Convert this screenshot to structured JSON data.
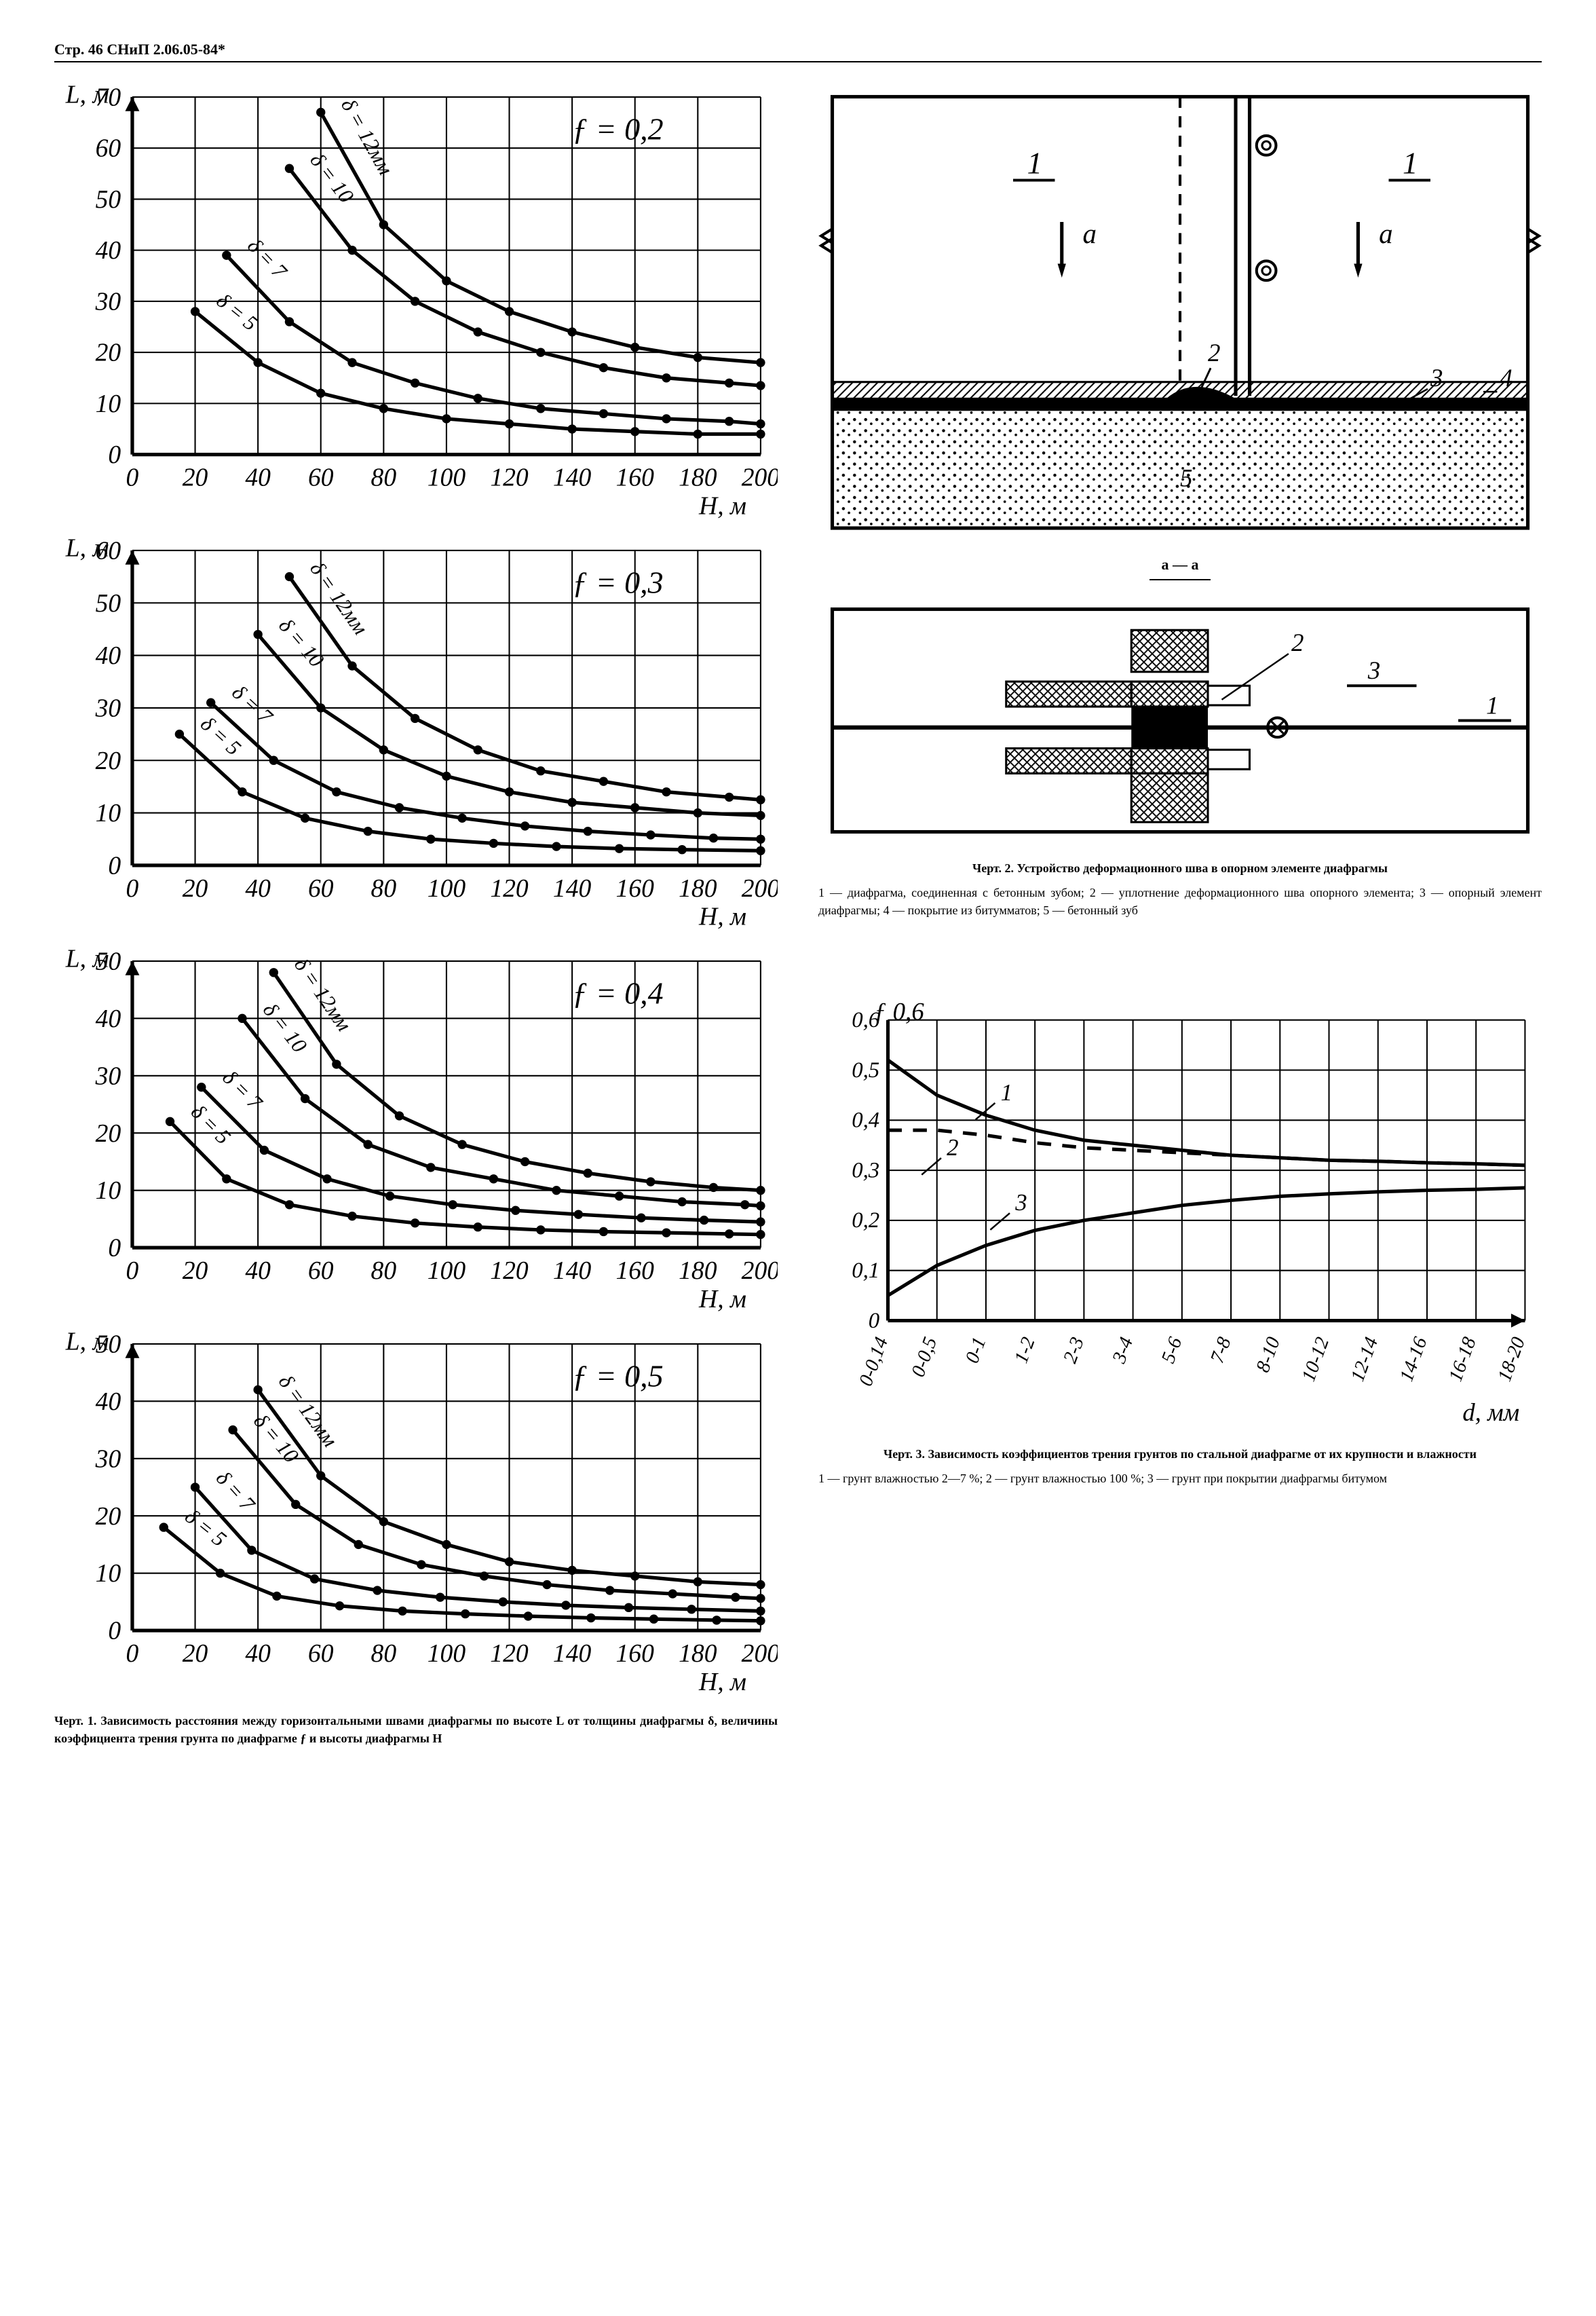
{
  "header": "Стр. 46 СНиП 2.06.05-84*",
  "chart1": {
    "panels": [
      {
        "y_label": "L, м",
        "y_max": 70,
        "y_step": 10,
        "x_label": "H, м",
        "x_max": 200,
        "x_step": 20,
        "f_label": "ƒ = 0,2",
        "curves": [
          {
            "label": "δ = 12мм",
            "pts": [
              [
                60,
                67
              ],
              [
                80,
                45
              ],
              [
                100,
                34
              ],
              [
                120,
                28
              ],
              [
                140,
                24
              ],
              [
                160,
                21
              ],
              [
                180,
                19
              ],
              [
                200,
                18
              ]
            ]
          },
          {
            "label": "δ = 10",
            "pts": [
              [
                50,
                56
              ],
              [
                70,
                40
              ],
              [
                90,
                30
              ],
              [
                110,
                24
              ],
              [
                130,
                20
              ],
              [
                150,
                17
              ],
              [
                170,
                15
              ],
              [
                190,
                14
              ],
              [
                200,
                13.5
              ]
            ]
          },
          {
            "label": "δ = 7",
            "pts": [
              [
                30,
                39
              ],
              [
                50,
                26
              ],
              [
                70,
                18
              ],
              [
                90,
                14
              ],
              [
                110,
                11
              ],
              [
                130,
                9
              ],
              [
                150,
                8
              ],
              [
                170,
                7
              ],
              [
                190,
                6.5
              ],
              [
                200,
                6
              ]
            ]
          },
          {
            "label": "δ = 5",
            "pts": [
              [
                20,
                28
              ],
              [
                40,
                18
              ],
              [
                60,
                12
              ],
              [
                80,
                9
              ],
              [
                100,
                7
              ],
              [
                120,
                6
              ],
              [
                140,
                5
              ],
              [
                160,
                4.5
              ],
              [
                180,
                4
              ],
              [
                200,
                4
              ]
            ]
          }
        ]
      },
      {
        "y_label": "L, м",
        "y_max": 60,
        "y_step": 10,
        "x_label": "H, м",
        "x_max": 200,
        "x_step": 20,
        "f_label": "ƒ = 0,3",
        "curves": [
          {
            "label": "δ = 12мм",
            "pts": [
              [
                50,
                55
              ],
              [
                70,
                38
              ],
              [
                90,
                28
              ],
              [
                110,
                22
              ],
              [
                130,
                18
              ],
              [
                150,
                16
              ],
              [
                170,
                14
              ],
              [
                190,
                13
              ],
              [
                200,
                12.5
              ]
            ]
          },
          {
            "label": "δ = 10",
            "pts": [
              [
                40,
                44
              ],
              [
                60,
                30
              ],
              [
                80,
                22
              ],
              [
                100,
                17
              ],
              [
                120,
                14
              ],
              [
                140,
                12
              ],
              [
                160,
                11
              ],
              [
                180,
                10
              ],
              [
                200,
                9.5
              ]
            ]
          },
          {
            "label": "δ = 7",
            "pts": [
              [
                25,
                31
              ],
              [
                45,
                20
              ],
              [
                65,
                14
              ],
              [
                85,
                11
              ],
              [
                105,
                9
              ],
              [
                125,
                7.5
              ],
              [
                145,
                6.5
              ],
              [
                165,
                5.8
              ],
              [
                185,
                5.2
              ],
              [
                200,
                5
              ]
            ]
          },
          {
            "label": "δ = 5",
            "pts": [
              [
                15,
                25
              ],
              [
                35,
                14
              ],
              [
                55,
                9
              ],
              [
                75,
                6.5
              ],
              [
                95,
                5
              ],
              [
                115,
                4.2
              ],
              [
                135,
                3.6
              ],
              [
                155,
                3.2
              ],
              [
                175,
                3
              ],
              [
                200,
                2.8
              ]
            ]
          }
        ]
      },
      {
        "y_label": "L, м",
        "y_max": 50,
        "y_step": 10,
        "x_label": "H, м",
        "x_max": 200,
        "x_step": 20,
        "f_label": "ƒ = 0,4",
        "curves": [
          {
            "label": "δ = 12мм",
            "pts": [
              [
                45,
                48
              ],
              [
                65,
                32
              ],
              [
                85,
                23
              ],
              [
                105,
                18
              ],
              [
                125,
                15
              ],
              [
                145,
                13
              ],
              [
                165,
                11.5
              ],
              [
                185,
                10.5
              ],
              [
                200,
                10
              ]
            ]
          },
          {
            "label": "δ = 10",
            "pts": [
              [
                35,
                40
              ],
              [
                55,
                26
              ],
              [
                75,
                18
              ],
              [
                95,
                14
              ],
              [
                115,
                12
              ],
              [
                135,
                10
              ],
              [
                155,
                9
              ],
              [
                175,
                8
              ],
              [
                195,
                7.5
              ],
              [
                200,
                7.3
              ]
            ]
          },
          {
            "label": "δ = 7",
            "pts": [
              [
                22,
                28
              ],
              [
                42,
                17
              ],
              [
                62,
                12
              ],
              [
                82,
                9
              ],
              [
                102,
                7.5
              ],
              [
                122,
                6.5
              ],
              [
                142,
                5.8
              ],
              [
                162,
                5.2
              ],
              [
                182,
                4.8
              ],
              [
                200,
                4.5
              ]
            ]
          },
          {
            "label": "δ = 5",
            "pts": [
              [
                12,
                22
              ],
              [
                30,
                12
              ],
              [
                50,
                7.5
              ],
              [
                70,
                5.5
              ],
              [
                90,
                4.3
              ],
              [
                110,
                3.6
              ],
              [
                130,
                3.1
              ],
              [
                150,
                2.8
              ],
              [
                170,
                2.6
              ],
              [
                190,
                2.4
              ],
              [
                200,
                2.3
              ]
            ]
          }
        ]
      },
      {
        "y_label": "L, м",
        "y_max": 50,
        "y_step": 10,
        "x_label": "H, м",
        "x_max": 200,
        "x_step": 20,
        "f_label": "ƒ = 0,5",
        "curves": [
          {
            "label": "δ = 12мм",
            "pts": [
              [
                40,
                42
              ],
              [
                60,
                27
              ],
              [
                80,
                19
              ],
              [
                100,
                15
              ],
              [
                120,
                12
              ],
              [
                140,
                10.5
              ],
              [
                160,
                9.5
              ],
              [
                180,
                8.5
              ],
              [
                200,
                8
              ]
            ]
          },
          {
            "label": "δ = 10",
            "pts": [
              [
                32,
                35
              ],
              [
                52,
                22
              ],
              [
                72,
                15
              ],
              [
                92,
                11.5
              ],
              [
                112,
                9.5
              ],
              [
                132,
                8
              ],
              [
                152,
                7
              ],
              [
                172,
                6.4
              ],
              [
                192,
                5.8
              ],
              [
                200,
                5.6
              ]
            ]
          },
          {
            "label": "δ = 7",
            "pts": [
              [
                20,
                25
              ],
              [
                38,
                14
              ],
              [
                58,
                9
              ],
              [
                78,
                7
              ],
              [
                98,
                5.8
              ],
              [
                118,
                5
              ],
              [
                138,
                4.4
              ],
              [
                158,
                4
              ],
              [
                178,
                3.7
              ],
              [
                200,
                3.4
              ]
            ]
          },
          {
            "label": "δ = 5",
            "pts": [
              [
                10,
                18
              ],
              [
                28,
                10
              ],
              [
                46,
                6
              ],
              [
                66,
                4.3
              ],
              [
                86,
                3.4
              ],
              [
                106,
                2.9
              ],
              [
                126,
                2.5
              ],
              [
                146,
                2.2
              ],
              [
                166,
                2
              ],
              [
                186,
                1.8
              ],
              [
                200,
                1.7
              ]
            ]
          }
        ]
      }
    ],
    "caption_title": "Черт. 1. Зависимость расстояния между горизонтальными швами диафрагмы по высоте L от толщины диафрагмы δ, величины коэффициента трения грунта по диафрагме ƒ и высоты диафрагмы H"
  },
  "chart2": {
    "caption_title": "Черт. 2. Устройство деформационного шва в опорном элементе диафрагмы",
    "caption_body": "1 — диафрагма, соединенная с бетонным зубом; 2 — уплотнение деформационного шва опорного элемента; 3 — опорный элемент диафрагмы; 4 — покрытие из битумматов; 5 — бетонный зуб",
    "section_label": "a — a",
    "callouts": {
      "one": "1",
      "two": "2",
      "three": "3",
      "four": "4",
      "five": "5",
      "a": "a"
    }
  },
  "chart3": {
    "y_label": "ƒ",
    "y_max": 0.6,
    "y_step": 0.1,
    "x_label": "d, мм",
    "x_ticks": [
      "0-0,14",
      "0-0,5",
      "0-1",
      "1-2",
      "2-3",
      "3-4",
      "5-6",
      "7-8",
      "8-10",
      "10-12",
      "12-14",
      "14-16",
      "16-18",
      "18-20"
    ],
    "curves": [
      {
        "label": "1",
        "pts": [
          [
            0,
            0.52
          ],
          [
            1,
            0.45
          ],
          [
            2,
            0.41
          ],
          [
            3,
            0.38
          ],
          [
            4,
            0.36
          ],
          [
            5,
            0.35
          ],
          [
            6,
            0.34
          ],
          [
            7,
            0.33
          ],
          [
            8,
            0.325
          ],
          [
            9,
            0.32
          ],
          [
            10,
            0.318
          ],
          [
            11,
            0.315
          ],
          [
            12,
            0.313
          ],
          [
            13,
            0.31
          ]
        ]
      },
      {
        "label": "2",
        "dash": true,
        "pts": [
          [
            0,
            0.38
          ],
          [
            1,
            0.38
          ],
          [
            2,
            0.37
          ],
          [
            3,
            0.355
          ],
          [
            4,
            0.345
          ],
          [
            5,
            0.34
          ],
          [
            6,
            0.335
          ],
          [
            7,
            0.33
          ],
          [
            8,
            0.325
          ],
          [
            9,
            0.32
          ],
          [
            10,
            0.318
          ],
          [
            11,
            0.315
          ],
          [
            12,
            0.313
          ],
          [
            13,
            0.31
          ]
        ]
      },
      {
        "label": "3",
        "pts": [
          [
            0,
            0.05
          ],
          [
            1,
            0.11
          ],
          [
            2,
            0.15
          ],
          [
            3,
            0.18
          ],
          [
            4,
            0.2
          ],
          [
            5,
            0.215
          ],
          [
            6,
            0.23
          ],
          [
            7,
            0.24
          ],
          [
            8,
            0.248
          ],
          [
            9,
            0.253
          ],
          [
            10,
            0.257
          ],
          [
            11,
            0.26
          ],
          [
            12,
            0.262
          ],
          [
            13,
            0.265
          ]
        ]
      }
    ],
    "curve_labels": [
      {
        "text": "1",
        "x": 2.3,
        "y": 0.44
      },
      {
        "text": "2",
        "x": 1.2,
        "y": 0.33
      },
      {
        "text": "3",
        "x": 2.6,
        "y": 0.22
      }
    ],
    "caption_title": "Черт. 3. Зависимость коэффициентов трения грунтов по стальной диафрагме от их крупности и влажности",
    "caption_body": "1 — грунт влажностью 2—7 %; 2 — грунт влажностью 100 %; 3 — грунт при покрытии диафрагмы битумом"
  },
  "style": {
    "axis_color": "#000000",
    "grid_color": "#000000",
    "line_color": "#000000",
    "bg": "#ffffff",
    "axis_width": 2.5,
    "grid_width": 1,
    "curve_width": 2.5,
    "marker_r": 3.2,
    "font_axis": 18,
    "font_italic": "italic"
  }
}
